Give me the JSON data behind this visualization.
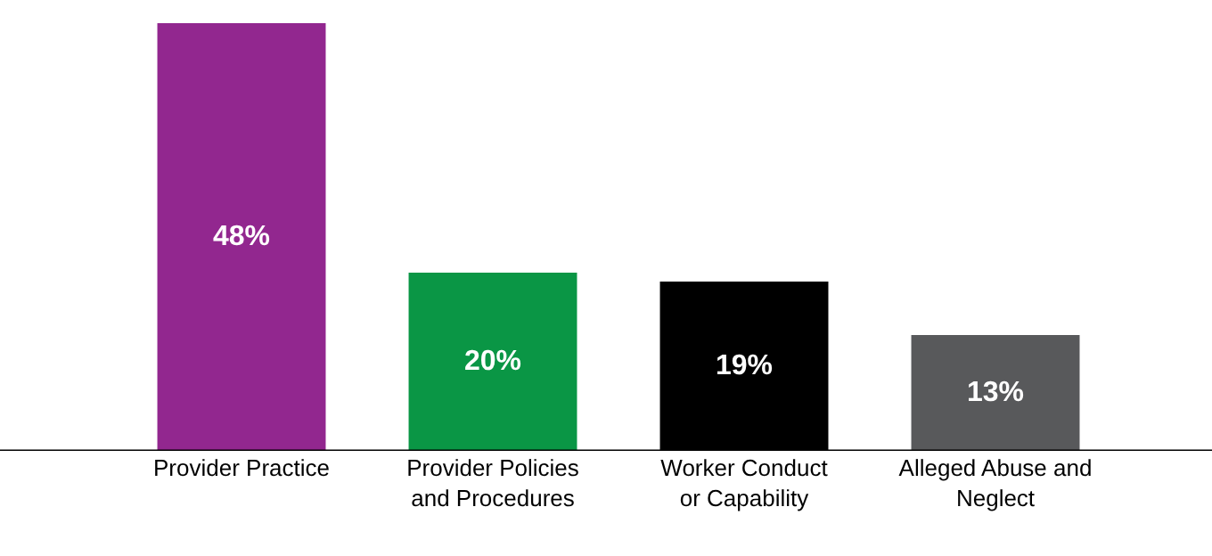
{
  "chart_data": {
    "type": "bar",
    "categories": [
      "Provider Practice",
      "Provider Policies\nand Procedures",
      "Worker Conduct\nor Capability",
      "Alleged Abuse and\nNeglect"
    ],
    "values": [
      48,
      20,
      19,
      13
    ],
    "colors": [
      "#92278f",
      "#0a9645",
      "#000000",
      "#58595b"
    ],
    "data_labels": true,
    "value_labels": [
      "48%",
      "20%",
      "19%",
      "13%"
    ]
  }
}
